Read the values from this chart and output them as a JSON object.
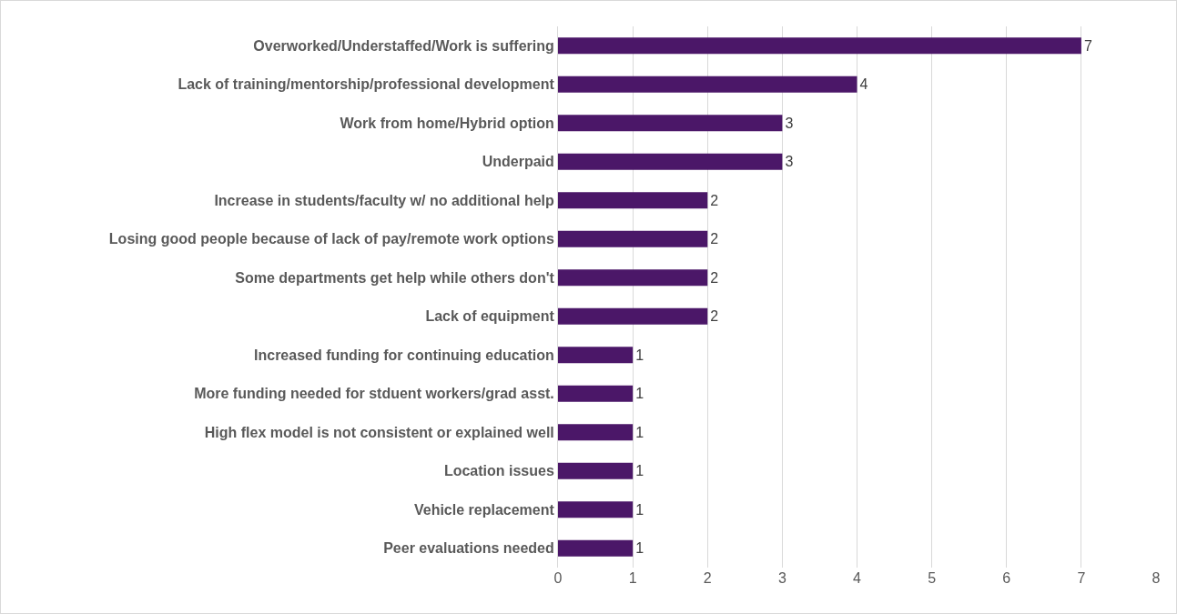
{
  "chart_data": {
    "type": "bar",
    "orientation": "horizontal",
    "categories": [
      "Overworked/Understaffed/Work is suffering",
      "Lack of training/mentorship/professional development",
      "Work from home/Hybrid option",
      "Underpaid",
      "Increase in students/faculty w/ no additional help",
      "Losing good people because of lack of pay/remote work options",
      "Some departments get help while others don't",
      "Lack of equipment",
      "Increased funding for continuing education",
      "More funding needed for stduent workers/grad asst.",
      "High flex model is not consistent or explained well",
      "Location issues",
      "Vehicle replacement",
      "Peer evaluations needed"
    ],
    "values": [
      7,
      4,
      3,
      3,
      2,
      2,
      2,
      2,
      1,
      1,
      1,
      1,
      1,
      1
    ],
    "color": "#4b1768",
    "xlim": [
      0,
      8
    ],
    "xticks": [
      0,
      1,
      2,
      3,
      4,
      5,
      6,
      7,
      8
    ],
    "grid": "x",
    "data_labels": true,
    "legend": false
  }
}
